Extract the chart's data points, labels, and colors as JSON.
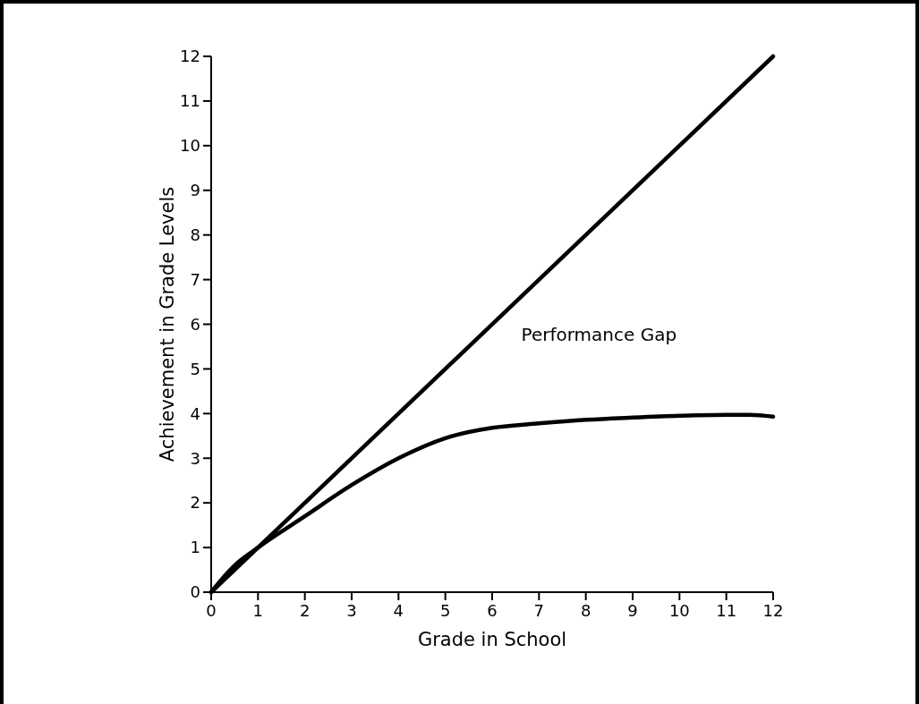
{
  "chart_data": {
    "type": "line",
    "xlabel": "Grade in School",
    "ylabel": "Achievement in Grade Levels",
    "xlim": [
      0,
      12
    ],
    "ylim": [
      0,
      12
    ],
    "xticks": [
      0,
      1,
      2,
      3,
      4,
      5,
      6,
      7,
      8,
      9,
      10,
      11,
      12
    ],
    "yticks": [
      0,
      1,
      2,
      3,
      4,
      5,
      6,
      7,
      8,
      9,
      10,
      11,
      12
    ],
    "grid": false,
    "marker": "none",
    "line_style": "solid",
    "series": [
      {
        "color": "#000000",
        "x": [
          0,
          12
        ],
        "values": [
          0,
          12
        ]
      },
      {
        "color": "#000000",
        "x": [
          0,
          0.5,
          1,
          2,
          3,
          4,
          5,
          6,
          7,
          8,
          9,
          10,
          11,
          11.5,
          12
        ],
        "values": [
          0,
          0.6,
          1.0,
          1.7,
          2.4,
          3.0,
          3.45,
          3.68,
          3.78,
          3.86,
          3.91,
          3.95,
          3.97,
          3.97,
          3.93
        ]
      }
    ],
    "annotations": [
      "Performance Gap"
    ]
  }
}
